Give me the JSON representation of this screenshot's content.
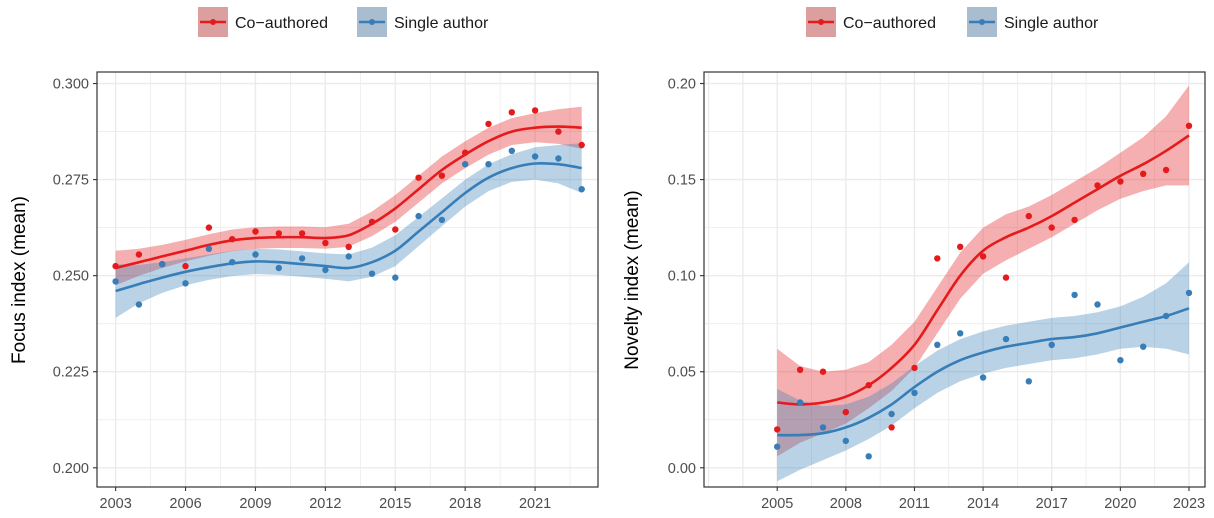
{
  "colors": {
    "coauthored": "#E41A1C",
    "single": "#377EB8",
    "grid": "#EBEBEB",
    "panel_border": "#333333"
  },
  "chart_data": [
    {
      "type": "scatter",
      "ylabel": "Focus index (mean)",
      "ylim": [
        0.195,
        0.303
      ],
      "xlim": [
        2002.2,
        2023.7
      ],
      "xticks": [
        2003,
        2006,
        2009,
        2012,
        2015,
        2018,
        2021
      ],
      "xtick_labels": [
        "2003",
        "2006",
        "2009",
        "2012",
        "2015",
        "2018",
        "2021"
      ],
      "yticks": [
        0.2,
        0.225,
        0.25,
        0.275,
        0.3
      ],
      "ytick_labels": [
        "0.200",
        "0.225",
        "0.250",
        "0.275",
        "0.300"
      ],
      "grid": true,
      "legend_position": "top",
      "legend": [
        "Co−authored",
        "Single author"
      ],
      "series": [
        {
          "name": "Co−authored",
          "color": "#E41A1C",
          "points": [
            [
              2003,
              0.2525
            ],
            [
              2004,
              0.2555
            ],
            [
              2005,
              0.253
            ],
            [
              2006,
              0.2525
            ],
            [
              2007,
              0.2625
            ],
            [
              2008,
              0.2595
            ],
            [
              2009,
              0.2615
            ],
            [
              2010,
              0.261
            ],
            [
              2011,
              0.261
            ],
            [
              2012,
              0.2585
            ],
            [
              2013,
              0.2575
            ],
            [
              2014,
              0.264
            ],
            [
              2015,
              0.262
            ],
            [
              2016,
              0.2755
            ],
            [
              2017,
              0.276
            ],
            [
              2018,
              0.282
            ],
            [
              2019,
              0.2895
            ],
            [
              2020,
              0.2925
            ],
            [
              2021,
              0.293
            ],
            [
              2022,
              0.2875
            ],
            [
              2023,
              0.284
            ]
          ],
          "smooth": [
            [
              2003,
              0.252
            ],
            [
              2004,
              0.2535
            ],
            [
              2005,
              0.255
            ],
            [
              2006,
              0.2565
            ],
            [
              2007,
              0.258
            ],
            [
              2008,
              0.2592
            ],
            [
              2009,
              0.2598
            ],
            [
              2010,
              0.26
            ],
            [
              2011,
              0.26
            ],
            [
              2012,
              0.2598
            ],
            [
              2013,
              0.2605
            ],
            [
              2014,
              0.2635
            ],
            [
              2015,
              0.2675
            ],
            [
              2016,
              0.2725
            ],
            [
              2017,
              0.2775
            ],
            [
              2018,
              0.2815
            ],
            [
              2019,
              0.285
            ],
            [
              2020,
              0.2875
            ],
            [
              2021,
              0.2885
            ],
            [
              2022,
              0.2888
            ],
            [
              2023,
              0.2885
            ]
          ],
          "band": [
            0.0045,
            0.0035,
            0.003,
            0.0028,
            0.0028,
            0.0028,
            0.0028,
            0.0028,
            0.0028,
            0.0028,
            0.003,
            0.0032,
            0.0035,
            0.0035,
            0.0035,
            0.0035,
            0.0035,
            0.0035,
            0.0038,
            0.0045,
            0.0055
          ]
        },
        {
          "name": "Single author",
          "color": "#377EB8",
          "points": [
            [
              2003,
              0.2485
            ],
            [
              2004,
              0.2425
            ],
            [
              2005,
              0.253
            ],
            [
              2006,
              0.248
            ],
            [
              2007,
              0.257
            ],
            [
              2008,
              0.2535
            ],
            [
              2009,
              0.2555
            ],
            [
              2010,
              0.252
            ],
            [
              2011,
              0.2545
            ],
            [
              2012,
              0.2515
            ],
            [
              2013,
              0.255
            ],
            [
              2014,
              0.2505
            ],
            [
              2015,
              0.2495
            ],
            [
              2016,
              0.2655
            ],
            [
              2017,
              0.2645
            ],
            [
              2018,
              0.279
            ],
            [
              2019,
              0.279
            ],
            [
              2020,
              0.2825
            ],
            [
              2021,
              0.281
            ],
            [
              2022,
              0.2805
            ],
            [
              2023,
              0.2725
            ]
          ],
          "smooth": [
            [
              2003,
              0.246
            ],
            [
              2004,
              0.2478
            ],
            [
              2005,
              0.2495
            ],
            [
              2006,
              0.251
            ],
            [
              2007,
              0.2522
            ],
            [
              2008,
              0.2532
            ],
            [
              2009,
              0.2537
            ],
            [
              2010,
              0.2535
            ],
            [
              2011,
              0.253
            ],
            [
              2012,
              0.2525
            ],
            [
              2013,
              0.252
            ],
            [
              2014,
              0.2535
            ],
            [
              2015,
              0.2565
            ],
            [
              2016,
              0.2615
            ],
            [
              2017,
              0.2665
            ],
            [
              2018,
              0.2715
            ],
            [
              2019,
              0.2755
            ],
            [
              2020,
              0.278
            ],
            [
              2021,
              0.2792
            ],
            [
              2022,
              0.279
            ],
            [
              2023,
              0.278
            ]
          ],
          "band": [
            0.007,
            0.005,
            0.004,
            0.0035,
            0.0033,
            0.0033,
            0.0033,
            0.0033,
            0.0033,
            0.0033,
            0.0035,
            0.0038,
            0.004,
            0.0038,
            0.0036,
            0.0035,
            0.0035,
            0.0036,
            0.0042,
            0.005,
            0.0065
          ]
        }
      ]
    },
    {
      "type": "scatter",
      "ylabel": "Novelty index (mean)",
      "ylim": [
        -0.01,
        0.206
      ],
      "xlim": [
        2001.8,
        2023.7
      ],
      "xticks": [
        2005,
        2008,
        2011,
        2014,
        2017,
        2020,
        2023
      ],
      "xtick_labels": [
        "2005",
        "2008",
        "2011",
        "2014",
        "2017",
        "2020",
        "2023"
      ],
      "yticks": [
        0,
        0.05,
        0.1,
        0.15,
        0.2
      ],
      "ytick_labels": [
        "0.00",
        "0.05",
        "0.10",
        "0.15",
        "0.20"
      ],
      "grid": true,
      "legend_position": "top",
      "legend": [
        "Co−authored",
        "Single author"
      ],
      "series": [
        {
          "name": "Co−authored",
          "color": "#E41A1C",
          "points": [
            [
              2005,
              0.02
            ],
            [
              2006,
              0.051
            ],
            [
              2007,
              0.05
            ],
            [
              2008,
              0.029
            ],
            [
              2009,
              0.043
            ],
            [
              2010,
              0.021
            ],
            [
              2011,
              0.052
            ],
            [
              2012,
              0.109
            ],
            [
              2013,
              0.115
            ],
            [
              2014,
              0.11
            ],
            [
              2015,
              0.099
            ],
            [
              2016,
              0.131
            ],
            [
              2017,
              0.125
            ],
            [
              2018,
              0.129
            ],
            [
              2019,
              0.147
            ],
            [
              2020,
              0.149
            ],
            [
              2021,
              0.153
            ],
            [
              2022,
              0.155
            ],
            [
              2023,
              0.178
            ]
          ],
          "smooth": [
            [
              2005,
              0.034
            ],
            [
              2006,
              0.033
            ],
            [
              2007,
              0.034
            ],
            [
              2008,
              0.037
            ],
            [
              2009,
              0.043
            ],
            [
              2010,
              0.052
            ],
            [
              2011,
              0.064
            ],
            [
              2012,
              0.082
            ],
            [
              2013,
              0.1
            ],
            [
              2014,
              0.113
            ],
            [
              2015,
              0.12
            ],
            [
              2016,
              0.125
            ],
            [
              2017,
              0.131
            ],
            [
              2018,
              0.138
            ],
            [
              2019,
              0.145
            ],
            [
              2020,
              0.152
            ],
            [
              2021,
              0.158
            ],
            [
              2022,
              0.165
            ],
            [
              2023,
              0.173
            ]
          ],
          "band": [
            0.028,
            0.02,
            0.016,
            0.014,
            0.012,
            0.012,
            0.012,
            0.012,
            0.012,
            0.012,
            0.012,
            0.011,
            0.011,
            0.011,
            0.011,
            0.012,
            0.014,
            0.018,
            0.026
          ]
        },
        {
          "name": "Single author",
          "color": "#377EB8",
          "points": [
            [
              2005,
              0.011
            ],
            [
              2006,
              0.034
            ],
            [
              2007,
              0.021
            ],
            [
              2008,
              0.014
            ],
            [
              2009,
              0.006
            ],
            [
              2010,
              0.028
            ],
            [
              2011,
              0.039
            ],
            [
              2012,
              0.064
            ],
            [
              2013,
              0.07
            ],
            [
              2014,
              0.047
            ],
            [
              2015,
              0.067
            ],
            [
              2016,
              0.045
            ],
            [
              2017,
              0.064
            ],
            [
              2018,
              0.09
            ],
            [
              2019,
              0.085
            ],
            [
              2020,
              0.056
            ],
            [
              2021,
              0.063
            ],
            [
              2022,
              0.079
            ],
            [
              2023,
              0.091
            ]
          ],
          "smooth": [
            [
              2005,
              0.017
            ],
            [
              2006,
              0.017
            ],
            [
              2007,
              0.018
            ],
            [
              2008,
              0.021
            ],
            [
              2009,
              0.026
            ],
            [
              2010,
              0.033
            ],
            [
              2011,
              0.042
            ],
            [
              2012,
              0.05
            ],
            [
              2013,
              0.056
            ],
            [
              2014,
              0.06
            ],
            [
              2015,
              0.063
            ],
            [
              2016,
              0.065
            ],
            [
              2017,
              0.067
            ],
            [
              2018,
              0.068
            ],
            [
              2019,
              0.07
            ],
            [
              2020,
              0.073
            ],
            [
              2021,
              0.076
            ],
            [
              2022,
              0.079
            ],
            [
              2023,
              0.083
            ]
          ],
          "band": [
            0.024,
            0.018,
            0.014,
            0.012,
            0.011,
            0.011,
            0.011,
            0.011,
            0.011,
            0.011,
            0.011,
            0.011,
            0.011,
            0.011,
            0.011,
            0.011,
            0.013,
            0.017,
            0.024
          ]
        }
      ]
    }
  ]
}
